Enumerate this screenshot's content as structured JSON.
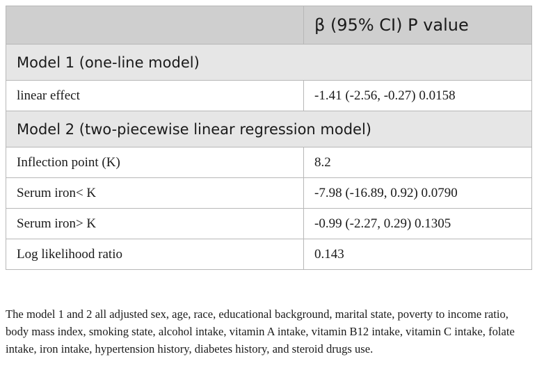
{
  "table": {
    "header": [
      "",
      "β (95% CI) P value"
    ],
    "model1": {
      "title": "Model 1 (one-line model)",
      "rows": [
        {
          "label": "linear effect",
          "value": "-1.41 (-2.56, -0.27) 0.0158"
        }
      ]
    },
    "model2": {
      "title": "Model 2 (two-piecewise linear regression model)",
      "rows": [
        {
          "label": "Inflection point (K)",
          "value": "8.2"
        },
        {
          "label": "Serum iron< K",
          "value": "-7.98 (-16.89, 0.92) 0.0790"
        },
        {
          "label": "Serum iron> K",
          "value": "-0.99 (-2.27, 0.29) 0.1305"
        },
        {
          "label": "Log likelihood ratio",
          "value": "0.143"
        }
      ]
    }
  },
  "footnote": "The model 1 and 2 all adjusted sex, age, race, educational background, marital state, poverty to income ratio, body mass index, smoking state, alcohol intake, vitamin A intake, vitamin B12 intake, vitamin C intake, folate intake, iron intake, hypertension history, diabetes history, and steroid drugs use."
}
